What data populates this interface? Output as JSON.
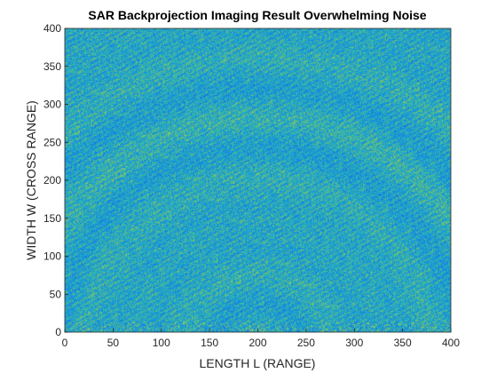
{
  "chart_data": {
    "type": "heatmap",
    "title": "SAR Backprojection Imaging Result Overwhelming Noise",
    "xlabel": "LENGTH L (RANGE)",
    "ylabel": "WIDTH W (CROSS RANGE)",
    "xlim": [
      0,
      400
    ],
    "ylim": [
      0,
      400
    ],
    "xticks": [
      "0",
      "50",
      "100",
      "150",
      "200",
      "250",
      "300",
      "350",
      "400"
    ],
    "yticks": [
      "0",
      "50",
      "100",
      "150",
      "200",
      "250",
      "300",
      "350",
      "400"
    ],
    "colormap": "parula",
    "colors": {
      "low": "#1a9bd6",
      "mid": "#3fb6a8",
      "high": "#d8c94a",
      "axis": "#262626"
    },
    "grid": false,
    "pattern": "speckle noise with concentric arcs centered near (200, 0)"
  }
}
